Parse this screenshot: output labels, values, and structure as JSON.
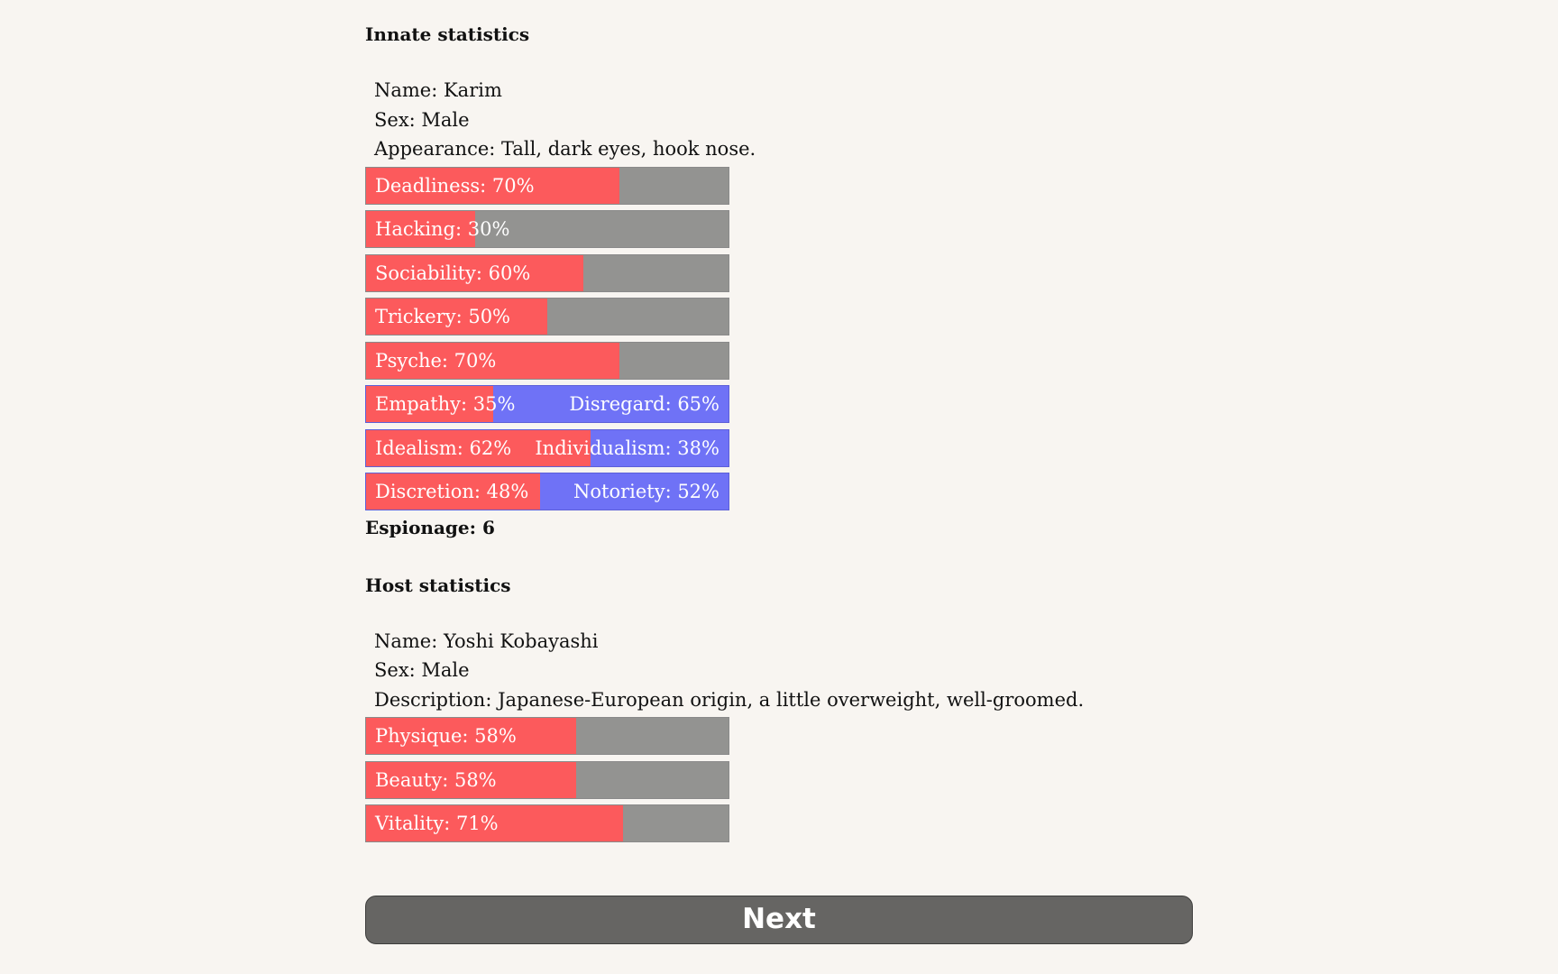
{
  "innate": {
    "title": "Innate statistics",
    "name": "Name: Karim",
    "sex": "Sex: Male",
    "appearance": "Appearance: Tall, dark eyes, hook nose.",
    "stats": [
      {
        "label": "Deadliness: 70%",
        "value": 0.7
      },
      {
        "label": "Hacking: 30%",
        "value": 0.3
      },
      {
        "label": "Sociability: 60%",
        "value": 0.6
      },
      {
        "label": "Trickery: 50%",
        "value": 0.5
      },
      {
        "label": "Psyche: 70%",
        "value": 0.7
      }
    ],
    "opposed": [
      {
        "left_label": "Empathy: 35%",
        "right_label": "Disregard: 65%",
        "value": 0.35
      },
      {
        "left_label": "Idealism: 62%",
        "right_label": "Individualism: 38%",
        "value": 0.62
      },
      {
        "left_label": "Discretion: 48%",
        "right_label": "Notoriety: 52%",
        "value": 0.48
      }
    ],
    "espionage": "Espionage: 6"
  },
  "host": {
    "title": "Host statistics",
    "name": "Name: Yoshi Kobayashi",
    "sex": "Sex: Male",
    "description": "Description: Japanese-European origin, a little overweight, well-groomed.",
    "stats": [
      {
        "label": "Physique: 58%",
        "value": 0.58
      },
      {
        "label": "Beauty: 58%",
        "value": 0.58
      },
      {
        "label": "Vitality: 71%",
        "value": 0.71
      }
    ]
  },
  "next_label": "Next",
  "colors": {
    "background": "#f8f5f1",
    "fill": "#fc5a5c",
    "remainder": "#939391",
    "opposed": "#6f72f6",
    "button": "#666563"
  }
}
